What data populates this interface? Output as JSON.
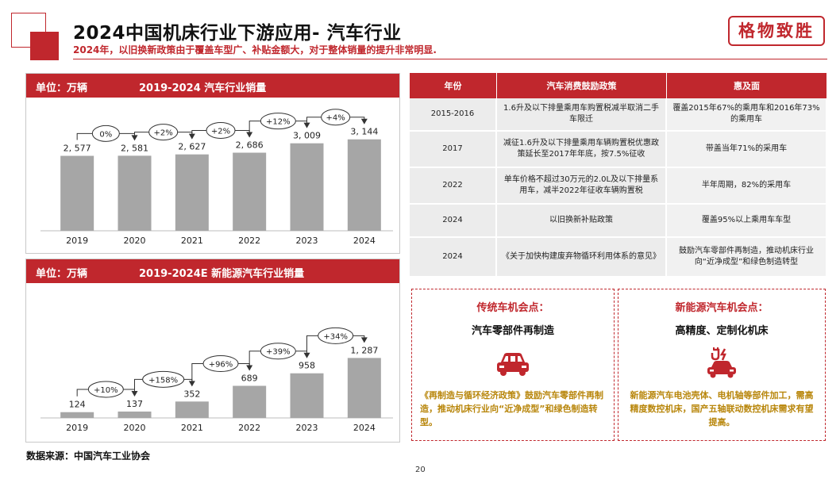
{
  "header": {
    "title": "2024中国机床行业下游应用- 汽车行业",
    "subtitle": "2024年，以旧换新政策由于覆盖车型广、补贴金额大，对于整体销量的提升非常明显.",
    "seal_text": "格物致胜"
  },
  "colors": {
    "accent": "#c0272d",
    "bar": "#a6a6a6",
    "note": "#b8860b"
  },
  "chart_data": [
    {
      "type": "bar",
      "unit_label": "单位：万辆",
      "title": "2019-2024   汽车行业销量",
      "categories": [
        "2019",
        "2020",
        "2021",
        "2022",
        "2023",
        "2024"
      ],
      "values": [
        2577,
        2581,
        2627,
        2686,
        3009,
        3144
      ],
      "value_labels": [
        "2, 577",
        "2, 581",
        "2, 627",
        "2, 686",
        "3, 009",
        "3, 144"
      ],
      "growth_labels": [
        "0%",
        "+2%",
        "+2%",
        "+12%",
        "+4%"
      ],
      "ylim": [
        0,
        3600
      ]
    },
    {
      "type": "bar",
      "unit_label": "单位：万辆",
      "title": "2019-2024E  新能源汽车行业销量",
      "categories": [
        "2019",
        "2020",
        "2021",
        "2022",
        "2023",
        "2024"
      ],
      "values": [
        124,
        137,
        352,
        689,
        958,
        1287
      ],
      "value_labels": [
        "124",
        "137",
        "352",
        "689",
        "958",
        "1, 287"
      ],
      "growth_labels": [
        "+10%",
        "+158%",
        "+96%",
        "+39%",
        "+34%"
      ],
      "ylim": [
        0,
        1600
      ]
    }
  ],
  "table": {
    "headers": [
      "年份",
      "汽车消费鼓励政策",
      "惠及面"
    ],
    "rows": [
      [
        "2015-2016",
        "1.6升及以下排量乘用车购置税减半取消二手车限迁",
        "覆盖2015年67%的乘用车和2016年73%的乘用车"
      ],
      [
        "2017",
        "减征1.6升及以下排量乘用车辆购置税优惠政策延长至2017年年底，按7.5%征收",
        "带盖当年71%的采用车"
      ],
      [
        "2022",
        "单车价格不超过30万元的2.0L及以下排量系用车，减半2022年征收车辆购置税",
        "半年周期，82%的采用车"
      ],
      [
        "2024",
        "以旧换新补贴政策",
        "覆盖95%以上乘用车车型"
      ],
      [
        "2024",
        "《关于加快构建废弃物循环利用体系的意见》",
        "鼓励汽车零部件再制造，推动机床行业向“近净成型”和绿色制造转型"
      ]
    ]
  },
  "box_traditional": {
    "title": "传统车机会点：",
    "subtitle": "汽车零部件再制造",
    "icon": "car-icon",
    "text": "《再制造与循环经济政策》鼓励汽车零部件再制造，推动机床行业向“近净成型”和绿色制造转型。"
  },
  "box_nev": {
    "title": "新能源汽车机会点：",
    "subtitle": "高精度、定制化机床",
    "icon": "ev-charging-icon",
    "text": "新能源汽车电池壳体、电机轴等部件加工，需高精度数控机床，国产五轴联动数控机床需求有望提高。"
  },
  "footer": {
    "source": "数据来源：中国汽车工业协会",
    "page_number": "20"
  }
}
